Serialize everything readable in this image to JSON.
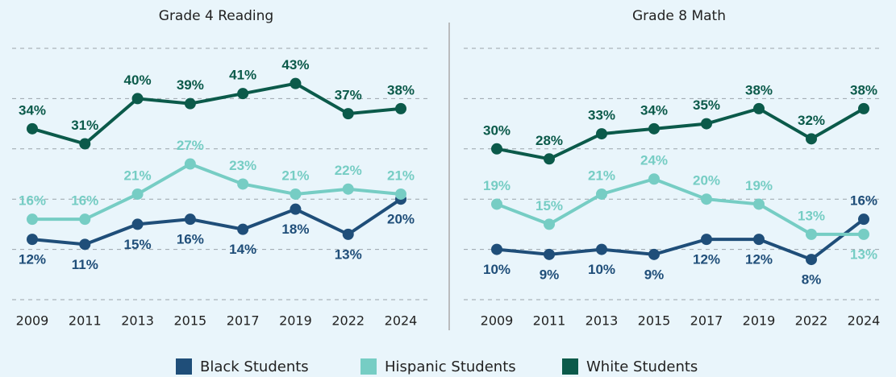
{
  "chart_data": [
    {
      "type": "line",
      "title": "Grade 4 Reading",
      "categories": [
        "2009",
        "2011",
        "2013",
        "2015",
        "2017",
        "2019",
        "2022",
        "2024"
      ],
      "ylim": [
        0,
        50
      ],
      "yticks": [
        0,
        10,
        20,
        30,
        40,
        50
      ],
      "grid": true,
      "legend": "bottom",
      "series": [
        {
          "name": "Black Students",
          "color": "#1f4e79",
          "values": [
            12,
            11,
            15,
            16,
            14,
            18,
            13,
            20
          ],
          "value_labels": [
            "12%",
            "11%",
            "15%",
            "16%",
            "14%",
            "18%",
            "13%",
            "20%"
          ]
        },
        {
          "name": "Hispanic Students",
          "color": "#76cdc4",
          "values": [
            16,
            16,
            21,
            27,
            23,
            21,
            22,
            21
          ],
          "value_labels": [
            "16%",
            "16%",
            "21%",
            "27%",
            "23%",
            "21%",
            "22%",
            "21%"
          ]
        },
        {
          "name": "White Students",
          "color": "#0b5a4a",
          "values": [
            34,
            31,
            40,
            39,
            41,
            43,
            37,
            38
          ],
          "value_labels": [
            "34%",
            "31%",
            "40%",
            "39%",
            "41%",
            "43%",
            "37%",
            "38%"
          ]
        }
      ]
    },
    {
      "type": "line",
      "title": "Grade 8 Math",
      "categories": [
        "2009",
        "2011",
        "2013",
        "2015",
        "2017",
        "2019",
        "2022",
        "2024"
      ],
      "ylim": [
        0,
        50
      ],
      "yticks": [
        0,
        10,
        20,
        30,
        40,
        50
      ],
      "grid": true,
      "series": [
        {
          "name": "Black Students",
          "color": "#1f4e79",
          "values": [
            10,
            9,
            10,
            9,
            12,
            12,
            8,
            16
          ],
          "value_labels": [
            "10%",
            "9%",
            "10%",
            "9%",
            "12%",
            "12%",
            "8%",
            "16%"
          ]
        },
        {
          "name": "Hispanic Students",
          "color": "#76cdc4",
          "values": [
            19,
            15,
            21,
            24,
            20,
            19,
            13,
            13
          ],
          "value_labels": [
            "19%",
            "15%",
            "21%",
            "24%",
            "20%",
            "19%",
            "13%",
            "13%"
          ]
        },
        {
          "name": "White Students",
          "color": "#0b5a4a",
          "values": [
            30,
            28,
            33,
            34,
            35,
            38,
            32,
            38
          ],
          "value_labels": [
            "30%",
            "28%",
            "33%",
            "34%",
            "35%",
            "38%",
            "32%",
            "38%"
          ]
        }
      ]
    }
  ]
}
